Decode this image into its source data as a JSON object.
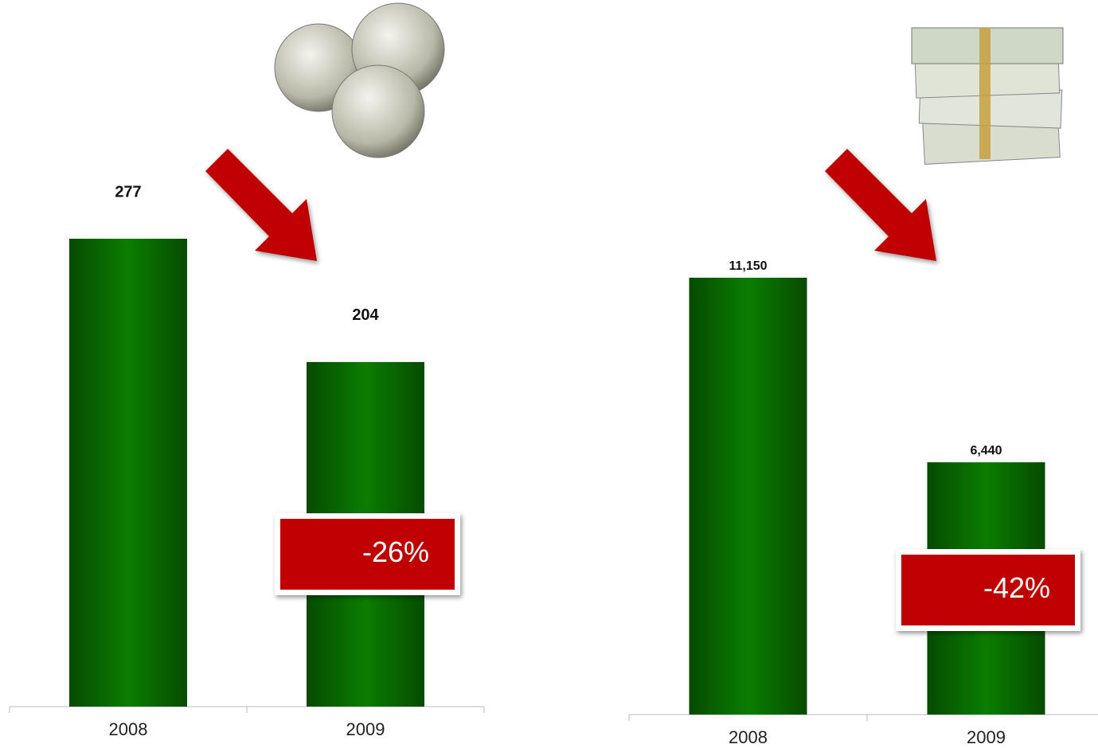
{
  "chart_data": [
    {
      "type": "bar",
      "categories": [
        "2008",
        "2009"
      ],
      "values": [
        277,
        204
      ],
      "color": "#0a7d00",
      "annotation": "-26%"
    },
    {
      "type": "bar",
      "categories": [
        "2008",
        "2009"
      ],
      "values": [
        11150,
        6440
      ],
      "value_labels": [
        "11,150",
        "6,440"
      ],
      "color": "#0a7d00",
      "annotation": "-42%"
    }
  ]
}
